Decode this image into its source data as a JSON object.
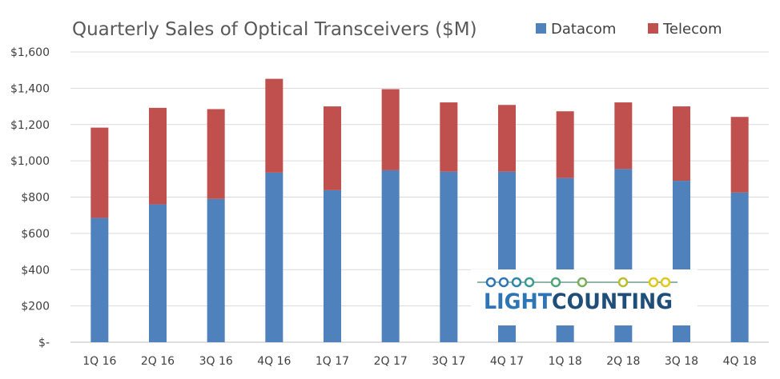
{
  "chart_data": {
    "type": "bar",
    "stacked": true,
    "title": "Quarterly Sales of Optical Transceivers ($M)",
    "categories": [
      "1Q 16",
      "2Q 16",
      "3Q 16",
      "4Q 16",
      "1Q 17",
      "2Q 17",
      "3Q 17",
      "4Q 17",
      "1Q 18",
      "2Q 18",
      "3Q 18",
      "4Q 18"
    ],
    "series": [
      {
        "name": "Datacom",
        "color": "#4F81BD",
        "values": [
          685,
          760,
          790,
          935,
          838,
          948,
          940,
          940,
          905,
          955,
          890,
          825
        ]
      },
      {
        "name": "Telecom",
        "color": "#C0504D",
        "values": [
          498,
          532,
          495,
          517,
          462,
          447,
          382,
          368,
          368,
          367,
          410,
          417
        ]
      }
    ],
    "ylim": [
      0,
      1600
    ],
    "yticks": [
      0,
      200,
      400,
      600,
      800,
      1000,
      1200,
      1400,
      1600
    ],
    "ytick_labels": [
      "$-",
      "$200",
      "$400",
      "$600",
      "$800",
      "$1,000",
      "$1,200",
      "$1,400",
      "$1,600"
    ],
    "grid": true,
    "legend_position": "top-right"
  },
  "watermark": {
    "text": "LIGHTCOUNTING",
    "colors": {
      "light": "#2E75B6",
      "counting": "#1F4E79"
    }
  }
}
